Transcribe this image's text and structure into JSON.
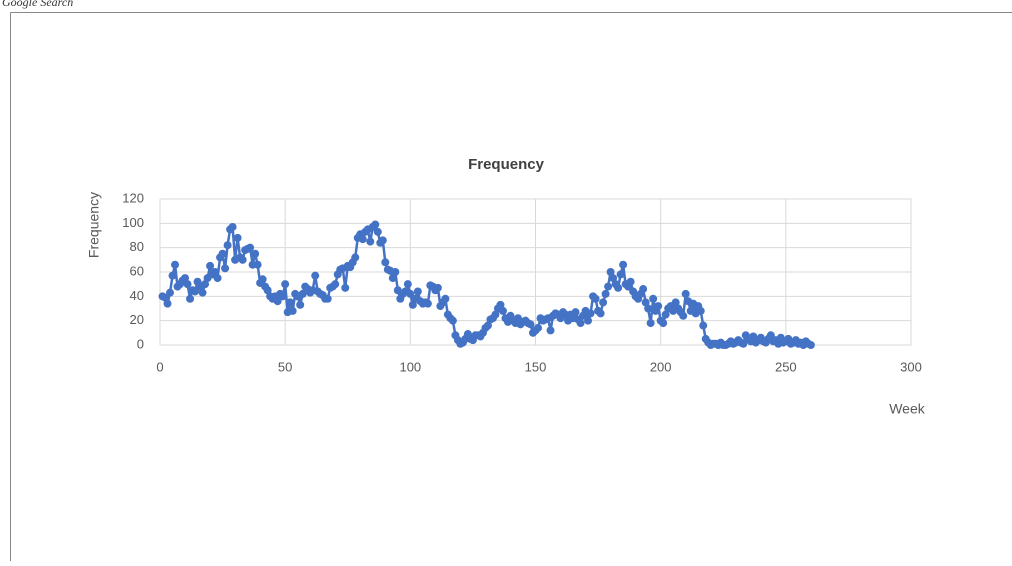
{
  "header": {
    "text": "Google Search"
  },
  "chart_data": {
    "type": "line",
    "title": "Frequency",
    "x_label": "Week",
    "y_label": "Frequency",
    "x": [
      1,
      2,
      3,
      4,
      5,
      6,
      7,
      8,
      9,
      10,
      11,
      12,
      13,
      14,
      15,
      16,
      17,
      18,
      19,
      20,
      21,
      22,
      23,
      24,
      25,
      26,
      27,
      28,
      29,
      30,
      31,
      32,
      33,
      34,
      35,
      36,
      37,
      38,
      39,
      40,
      41,
      42,
      43,
      44,
      45,
      46,
      47,
      48,
      49,
      50,
      51,
      52,
      53,
      54,
      55,
      56,
      57,
      58,
      59,
      60,
      61,
      62,
      63,
      64,
      65,
      66,
      67,
      68,
      69,
      70,
      71,
      72,
      73,
      74,
      75,
      76,
      77,
      78,
      79,
      80,
      81,
      82,
      83,
      84,
      85,
      86,
      87,
      88,
      89,
      90,
      91,
      92,
      93,
      94,
      95,
      96,
      97,
      98,
      99,
      100,
      101,
      102,
      103,
      104,
      105,
      106,
      107,
      108,
      109,
      110,
      111,
      112,
      113,
      114,
      115,
      116,
      117,
      118,
      119,
      120,
      121,
      122,
      123,
      124,
      125,
      126,
      127,
      128,
      129,
      130,
      131,
      132,
      133,
      134,
      135,
      136,
      137,
      138,
      139,
      140,
      141,
      142,
      143,
      144,
      145,
      146,
      147,
      148,
      149,
      150,
      151,
      152,
      153,
      154,
      155,
      156,
      157,
      158,
      159,
      160,
      161,
      162,
      163,
      164,
      165,
      166,
      167,
      168,
      169,
      170,
      171,
      172,
      173,
      174,
      175,
      176,
      177,
      178,
      179,
      180,
      181,
      182,
      183,
      184,
      185,
      186,
      187,
      188,
      189,
      190,
      191,
      192,
      193,
      194,
      195,
      196,
      197,
      198,
      199,
      200,
      201,
      202,
      203,
      204,
      205,
      206,
      207,
      208,
      209,
      210,
      211,
      212,
      213,
      214,
      215,
      216,
      217,
      218,
      219,
      220,
      221,
      222,
      223,
      224,
      225,
      226,
      227,
      228,
      229,
      230,
      231,
      232,
      233,
      234,
      235,
      236,
      237,
      238,
      239,
      240,
      241,
      242,
      243,
      244,
      245,
      246,
      247,
      248,
      249,
      250,
      251,
      252,
      253,
      254,
      255,
      256,
      257,
      258,
      259,
      260
    ],
    "series": [
      {
        "color": "#4472c4",
        "values": [
          40,
          39,
          34,
          43,
          57,
          66,
          48,
          50,
          53,
          55,
          50,
          38,
          45,
          44,
          52,
          48,
          43,
          50,
          55,
          65,
          58,
          60,
          55,
          72,
          75,
          63,
          82,
          95,
          97,
          70,
          88,
          72,
          70,
          78,
          79,
          80,
          66,
          75,
          66,
          51,
          54,
          48,
          45,
          40,
          38,
          40,
          36,
          42,
          40,
          50,
          27,
          35,
          28,
          42,
          40,
          33,
          42,
          48,
          46,
          43,
          45,
          57,
          44,
          42,
          41,
          38,
          38,
          47,
          48,
          50,
          58,
          62,
          63,
          47,
          65,
          64,
          68,
          72,
          88,
          91,
          87,
          93,
          95,
          85,
          97,
          99,
          93,
          84,
          86,
          68,
          62,
          61,
          55,
          60,
          45,
          38,
          42,
          44,
          50,
          42,
          33,
          38,
          44,
          36,
          34,
          35,
          34,
          49,
          48,
          45,
          47,
          32,
          35,
          38,
          25,
          22,
          20,
          8,
          4,
          1,
          2,
          5,
          9,
          5,
          4,
          8,
          8,
          7,
          10,
          14,
          16,
          21,
          22,
          25,
          30,
          33,
          28,
          22,
          19,
          24,
          20,
          18,
          22,
          17,
          19,
          20,
          18,
          17,
          10,
          12,
          14,
          22,
          20,
          21,
          22,
          12,
          24,
          26,
          25,
          22,
          27,
          25,
          20,
          25,
          22,
          27,
          21,
          18,
          24,
          28,
          20,
          26,
          40,
          38,
          28,
          26,
          35,
          42,
          48,
          60,
          55,
          50,
          47,
          58,
          66,
          50,
          48,
          52,
          44,
          40,
          38,
          42,
          46,
          35,
          30,
          18,
          38,
          28,
          32,
          20,
          18,
          25,
          30,
          32,
          28,
          35,
          30,
          27,
          24,
          42,
          36,
          28,
          34,
          26,
          32,
          28,
          16,
          5,
          2,
          0,
          1,
          1,
          0,
          2,
          0,
          0,
          1,
          3,
          1,
          2,
          4,
          2,
          1,
          8,
          5,
          3,
          7,
          2,
          4,
          6,
          3,
          2,
          5,
          8,
          3,
          4,
          1,
          6,
          2,
          3,
          5,
          1,
          2,
          4,
          1,
          2,
          0,
          3,
          1,
          0
        ]
      }
    ],
    "xlim": [
      0,
      300
    ],
    "xticks": [
      0,
      50,
      100,
      150,
      200,
      250,
      300
    ],
    "ylim": [
      0,
      120
    ],
    "yticks": [
      0,
      20,
      40,
      60,
      80,
      100,
      120
    ],
    "grid": true,
    "markers": true
  }
}
